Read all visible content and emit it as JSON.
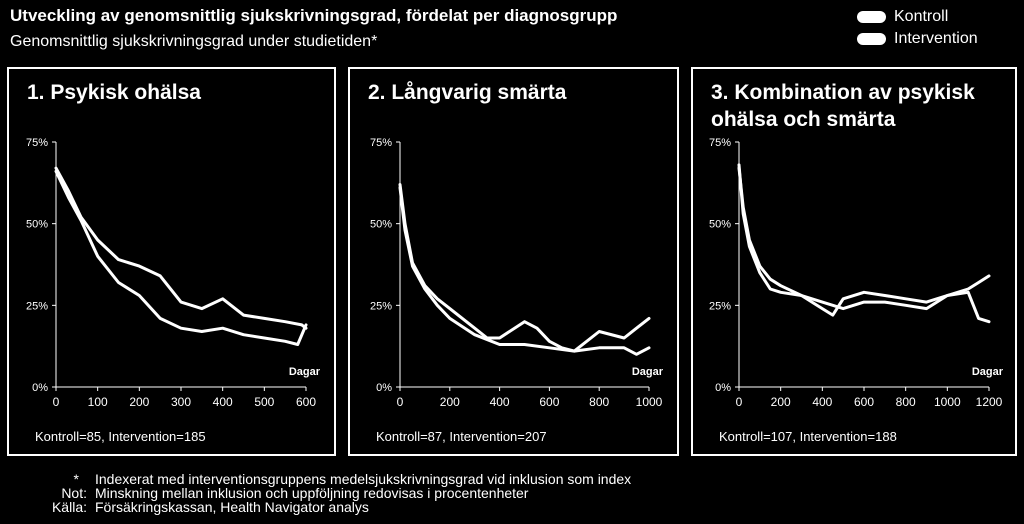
{
  "header": {
    "title": "Utveckling av genomsnittlig sjukskrivningsgrad, fördelat per diagnosgrupp",
    "subtitle": "Genomsnittlig sjukskrivningsgrad under studietiden*"
  },
  "legend": {
    "items": [
      "Kontroll",
      "Intervention"
    ]
  },
  "colors": {
    "background": "#000000",
    "foreground": "#ffffff"
  },
  "chart_data": [
    {
      "type": "line",
      "title": "1. Psykisk ohälsa",
      "xlabel": "Dagar",
      "ylabel": "",
      "xlim": [
        0,
        600
      ],
      "ylim": [
        0,
        75
      ],
      "xticks": [
        0,
        100,
        200,
        300,
        400,
        500,
        600
      ],
      "yticks": [
        0,
        25,
        50,
        75
      ],
      "ytick_labels": [
        "0%",
        "25%",
        "50%",
        "75%"
      ],
      "sample_note": "Kontroll=85, Intervention=185",
      "series": [
        {
          "name": "Kontroll",
          "x": [
            0,
            30,
            60,
            100,
            150,
            200,
            250,
            300,
            350,
            400,
            450,
            500,
            550,
            590,
            600
          ],
          "y": [
            67,
            60,
            52,
            45,
            39,
            37,
            34,
            26,
            24,
            27,
            22,
            21,
            20,
            19,
            18
          ]
        },
        {
          "name": "Intervention",
          "x": [
            0,
            30,
            60,
            100,
            150,
            200,
            250,
            300,
            350,
            400,
            450,
            500,
            550,
            580,
            600
          ],
          "y": [
            66,
            58,
            51,
            40,
            32,
            28,
            21,
            18,
            17,
            18,
            16,
            15,
            14,
            13,
            19
          ]
        }
      ]
    },
    {
      "type": "line",
      "title": "2. Långvarig smärta",
      "xlabel": "Dagar",
      "ylabel": "",
      "xlim": [
        0,
        1000
      ],
      "ylim": [
        0,
        75
      ],
      "xticks": [
        0,
        200,
        400,
        600,
        800,
        1000
      ],
      "yticks": [
        0,
        25,
        50,
        75
      ],
      "ytick_labels": [
        "0%",
        "25%",
        "50%",
        "75%"
      ],
      "sample_note": "Kontroll=87, Intervention=207",
      "series": [
        {
          "name": "Kontroll",
          "x": [
            0,
            20,
            50,
            100,
            150,
            200,
            300,
            350,
            400,
            500,
            550,
            600,
            650,
            700,
            800,
            900,
            950,
            1000
          ],
          "y": [
            62,
            50,
            38,
            31,
            27,
            24,
            18,
            15,
            15,
            20,
            18,
            14,
            12,
            11,
            17,
            15,
            18,
            21
          ]
        },
        {
          "name": "Intervention",
          "x": [
            0,
            20,
            50,
            100,
            150,
            200,
            300,
            400,
            500,
            600,
            700,
            800,
            900,
            950,
            1000
          ],
          "y": [
            61,
            48,
            37,
            30,
            25,
            21,
            16,
            13,
            13,
            12,
            11,
            12,
            12,
            10,
            12
          ]
        }
      ]
    },
    {
      "type": "line",
      "title": "3. Kombination av psykisk ohälsa och smärta",
      "xlabel": "Dagar",
      "ylabel": "",
      "xlim": [
        0,
        1200
      ],
      "ylim": [
        0,
        75
      ],
      "xticks": [
        0,
        200,
        400,
        600,
        800,
        1000,
        1200
      ],
      "yticks": [
        0,
        25,
        50,
        75
      ],
      "ytick_labels": [
        "0%",
        "25%",
        "50%",
        "75%"
      ],
      "sample_note": "Kontroll=107, Intervention=188",
      "series": [
        {
          "name": "Kontroll",
          "x": [
            0,
            20,
            50,
            100,
            150,
            200,
            300,
            400,
            500,
            600,
            700,
            800,
            900,
            1000,
            1100,
            1150,
            1200
          ],
          "y": [
            67,
            55,
            45,
            37,
            33,
            31,
            28,
            26,
            24,
            26,
            26,
            25,
            24,
            28,
            30,
            32,
            34
          ]
        },
        {
          "name": "Intervention",
          "x": [
            0,
            20,
            50,
            100,
            150,
            200,
            300,
            400,
            450,
            500,
            600,
            700,
            800,
            900,
            1000,
            1100,
            1150,
            1200
          ],
          "y": [
            68,
            53,
            43,
            35,
            30,
            29,
            28,
            24,
            22,
            27,
            29,
            28,
            27,
            26,
            28,
            29,
            21,
            20
          ]
        }
      ]
    }
  ],
  "notes": [
    {
      "key": "*",
      "text": "Indexerat med interventionsgruppens medelsjukskrivningsgrad vid inklusion som index"
    },
    {
      "key": "Not:",
      "text": "Minskning mellan inklusion och uppföljning redovisas i procentenheter"
    },
    {
      "key": "Källa:",
      "text": "Försäkringskassan, Health Navigator analys"
    }
  ]
}
